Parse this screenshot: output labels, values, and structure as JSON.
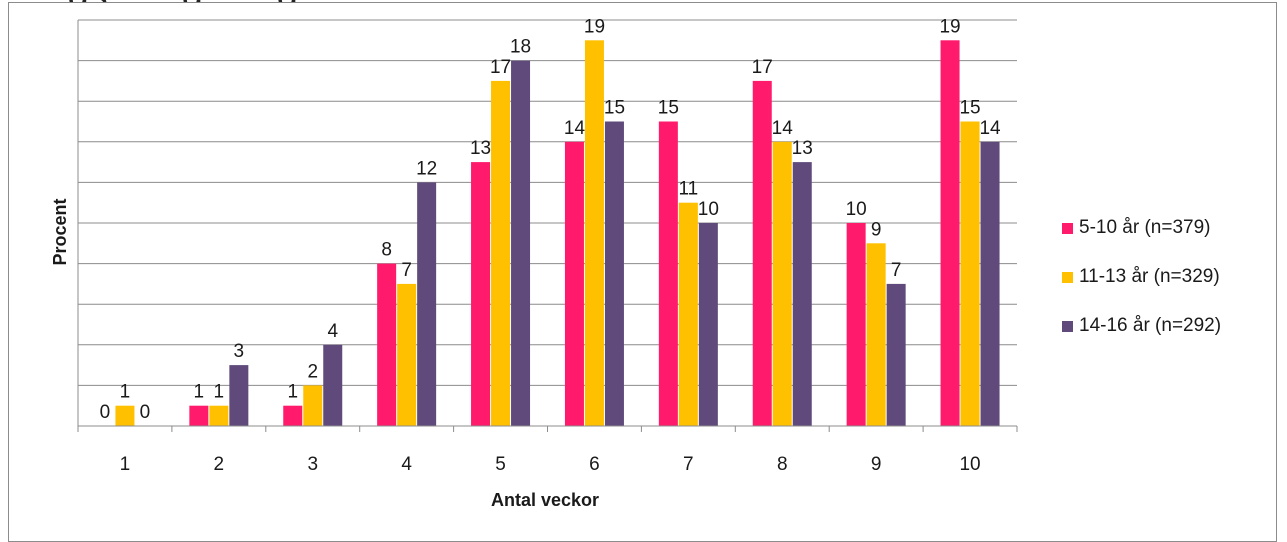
{
  "header": {
    "title_cut": "...gs...      ...g...              ...g..."
  },
  "chart_data": {
    "type": "bar",
    "title": "",
    "xlabel": "Antal veckor",
    "ylabel": "Procent",
    "categories": [
      "1",
      "2",
      "3",
      "4",
      "5",
      "6",
      "7",
      "8",
      "9",
      "10"
    ],
    "ylim": [
      0,
      20
    ],
    "grid": true,
    "legend_position": "right",
    "series": [
      {
        "name": "5-10 år (n=379)",
        "color": "#ff1a6c",
        "values": [
          0,
          1,
          1,
          8,
          13,
          14,
          15,
          17,
          10,
          19
        ]
      },
      {
        "name": "11-13 år (n=329)",
        "color": "#ffc000",
        "values": [
          1,
          1,
          2,
          7,
          17,
          19,
          11,
          14,
          9,
          15
        ]
      },
      {
        "name": "14-16 år (n=292)",
        "color": "#604a7b",
        "values": [
          0,
          3,
          4,
          12,
          18,
          15,
          10,
          13,
          7,
          14
        ]
      }
    ]
  }
}
